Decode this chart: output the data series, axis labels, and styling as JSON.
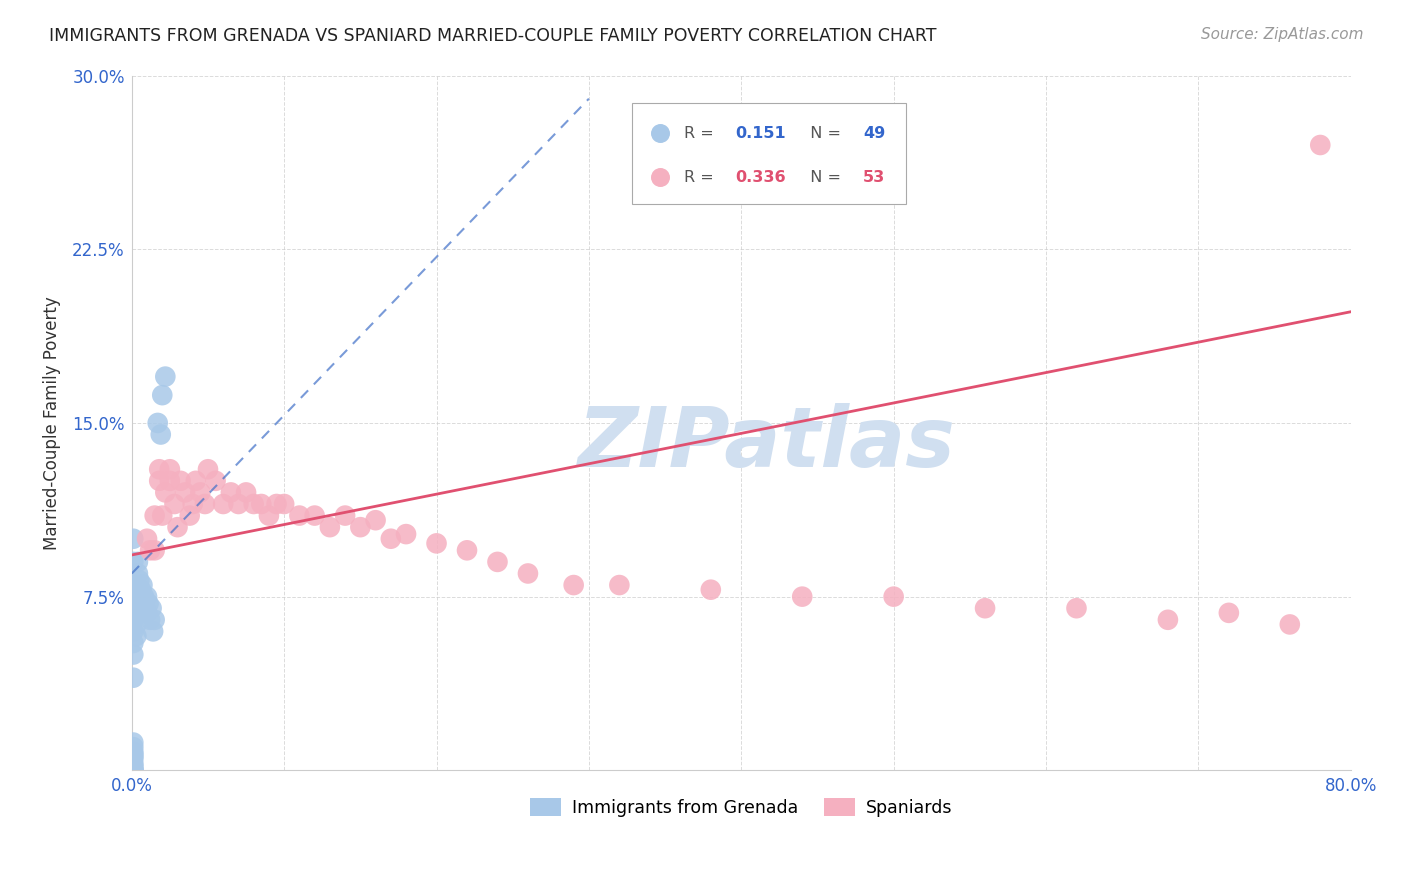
{
  "title": "IMMIGRANTS FROM GRENADA VS SPANIARD MARRIED-COUPLE FAMILY POVERTY CORRELATION CHART",
  "source": "Source: ZipAtlas.com",
  "ylabel": "Married-Couple Family Poverty",
  "x_min": 0.0,
  "x_max": 0.8,
  "y_min": 0.0,
  "y_max": 0.3,
  "grenada_R": 0.151,
  "grenada_N": 49,
  "spaniard_R": 0.336,
  "spaniard_N": 53,
  "grenada_color": "#a8c8e8",
  "spaniard_color": "#f5b0c0",
  "grenada_line_color": "#4070c8",
  "spaniard_line_color": "#e05070",
  "watermark_text": "ZIPatlas",
  "watermark_color": "#d0dff0",
  "background_color": "#ffffff",
  "grenada_x": [
    0.001,
    0.001,
    0.001,
    0.001,
    0.001,
    0.001,
    0.001,
    0.001,
    0.001,
    0.001,
    0.001,
    0.001,
    0.001,
    0.001,
    0.001,
    0.001,
    0.001,
    0.001,
    0.001,
    0.001,
    0.001,
    0.001,
    0.003,
    0.003,
    0.003,
    0.003,
    0.003,
    0.004,
    0.004,
    0.004,
    0.005,
    0.005,
    0.006,
    0.006,
    0.007,
    0.007,
    0.008,
    0.009,
    0.01,
    0.01,
    0.011,
    0.012,
    0.013,
    0.014,
    0.015,
    0.017,
    0.019,
    0.02,
    0.022
  ],
  "grenada_y": [
    0.0,
    0.0,
    0.0,
    0.001,
    0.002,
    0.003,
    0.005,
    0.006,
    0.007,
    0.008,
    0.01,
    0.012,
    0.04,
    0.05,
    0.055,
    0.06,
    0.065,
    0.07,
    0.075,
    0.08,
    0.09,
    0.1,
    0.058,
    0.063,
    0.068,
    0.072,
    0.08,
    0.078,
    0.085,
    0.09,
    0.075,
    0.082,
    0.07,
    0.078,
    0.072,
    0.08,
    0.075,
    0.07,
    0.068,
    0.075,
    0.072,
    0.065,
    0.07,
    0.06,
    0.065,
    0.15,
    0.145,
    0.162,
    0.17
  ],
  "spaniard_x": [
    0.01,
    0.012,
    0.015,
    0.015,
    0.018,
    0.018,
    0.02,
    0.022,
    0.025,
    0.025,
    0.028,
    0.03,
    0.032,
    0.035,
    0.038,
    0.04,
    0.042,
    0.045,
    0.048,
    0.05,
    0.055,
    0.06,
    0.065,
    0.07,
    0.075,
    0.08,
    0.085,
    0.09,
    0.095,
    0.1,
    0.11,
    0.12,
    0.13,
    0.14,
    0.15,
    0.16,
    0.17,
    0.18,
    0.2,
    0.22,
    0.24,
    0.26,
    0.29,
    0.32,
    0.38,
    0.44,
    0.5,
    0.56,
    0.62,
    0.68,
    0.72,
    0.76,
    0.78
  ],
  "spaniard_y": [
    0.1,
    0.095,
    0.095,
    0.11,
    0.125,
    0.13,
    0.11,
    0.12,
    0.125,
    0.13,
    0.115,
    0.105,
    0.125,
    0.12,
    0.11,
    0.115,
    0.125,
    0.12,
    0.115,
    0.13,
    0.125,
    0.115,
    0.12,
    0.115,
    0.12,
    0.115,
    0.115,
    0.11,
    0.115,
    0.115,
    0.11,
    0.11,
    0.105,
    0.11,
    0.105,
    0.108,
    0.1,
    0.102,
    0.098,
    0.095,
    0.09,
    0.085,
    0.08,
    0.08,
    0.078,
    0.075,
    0.075,
    0.07,
    0.07,
    0.065,
    0.068,
    0.063,
    0.27
  ],
  "grenada_line_x0": 0.0,
  "grenada_line_y0": 0.085,
  "grenada_line_x1": 0.3,
  "grenada_line_y1": 0.29,
  "spaniard_line_x0": 0.0,
  "spaniard_line_y0": 0.093,
  "spaniard_line_x1": 0.8,
  "spaniard_line_y1": 0.198
}
